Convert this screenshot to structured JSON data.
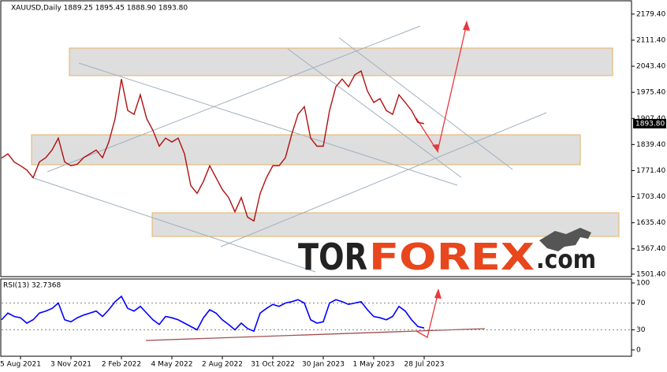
{
  "chart_data": [
    {
      "type": "line",
      "title": "XAUUSD,Daily 1889.25 1895.45 1888.90 1893.80",
      "categories": [
        null,
        null,
        null,
        "5 Aug 2021",
        null,
        null,
        null,
        null,
        null,
        null,
        null,
        "3 Nov 2021",
        null,
        null,
        null,
        null,
        null,
        null,
        null,
        "2 Feb 2022",
        null,
        null,
        null,
        null,
        null,
        null,
        null,
        "4 May 2022",
        null,
        null,
        null,
        null,
        null,
        null,
        null,
        "2 Aug 2022",
        null,
        null,
        null,
        null,
        null,
        null,
        null,
        "31 Oct 2022",
        null,
        null,
        null,
        null,
        null,
        null,
        null,
        "30 Jan 2023",
        null,
        null,
        null,
        null,
        null,
        null,
        null,
        "1 May 2023",
        null,
        null,
        null,
        null,
        null,
        null,
        null,
        "28 Jul 2023"
      ],
      "series": [
        {
          "name": "XAUUSD",
          "color": "#b01010",
          "values": [
            1804,
            1815,
            1794,
            1784,
            1773,
            1753,
            1794,
            1805,
            1825,
            1856,
            1794,
            1784,
            1788,
            1805,
            1815,
            1825,
            1805,
            1846,
            1907,
            2010,
            1928,
            1918,
            1969,
            1907,
            1876,
            1835,
            1856,
            1846,
            1856,
            1815,
            1732,
            1712,
            1743,
            1784,
            1753,
            1722,
            1701,
            1664,
            1701,
            1650,
            1640,
            1712,
            1753,
            1784,
            1784,
            1805,
            1866,
            1918,
            1938,
            1856,
            1835,
            1835,
            1928,
            1990,
            2010,
            1990,
            2021,
            2031,
            1979,
            1949,
            1959,
            1928,
            1918,
            1969,
            1949,
            1928,
            1897,
            1893.8
          ]
        }
      ],
      "ylim": [
        1497,
        2212
      ],
      "yticks": [
        {
          "value": 2179.4,
          "label": "2179.40"
        },
        {
          "value": 2111.4,
          "label": "2111.40"
        },
        {
          "value": 2043.4,
          "label": "2043.40"
        },
        {
          "value": 1975.4,
          "label": "1975.40"
        },
        {
          "value": 1907.4,
          "label": "1907.40"
        },
        {
          "value": 1839.4,
          "label": "1839.40"
        },
        {
          "value": 1771.4,
          "label": "1771.40"
        },
        {
          "value": 1703.4,
          "label": "1703.40"
        },
        {
          "value": 1635.4,
          "label": "1635.40"
        },
        {
          "value": 1567.4,
          "label": "1567.40"
        },
        {
          "value": 1501.4,
          "label": "1501.40"
        }
      ],
      "last_price": {
        "value": 1893.8,
        "label": "1893.80"
      }
    },
    {
      "type": "line",
      "title": "RSI(13) 32.7368",
      "series": [
        {
          "name": "RSI(13)",
          "color": "#0000ff",
          "values": [
            45,
            55,
            50,
            48,
            40,
            45,
            55,
            58,
            62,
            70,
            45,
            42,
            48,
            52,
            55,
            58,
            50,
            60,
            72,
            80,
            62,
            58,
            65,
            55,
            45,
            38,
            50,
            48,
            45,
            40,
            35,
            30,
            48,
            60,
            55,
            45,
            38,
            30,
            40,
            32,
            28,
            55,
            62,
            68,
            65,
            70,
            72,
            75,
            70,
            45,
            40,
            42,
            70,
            75,
            72,
            68,
            70,
            72,
            60,
            50,
            48,
            45,
            50,
            65,
            58,
            45,
            35,
            32.7368
          ]
        }
      ],
      "ylim": [
        -9.4,
        104.7
      ],
      "yticks": [
        100,
        70,
        30,
        0
      ]
    }
  ],
  "watermark": [
    "TOR",
    "FOREX",
    ".com"
  ]
}
